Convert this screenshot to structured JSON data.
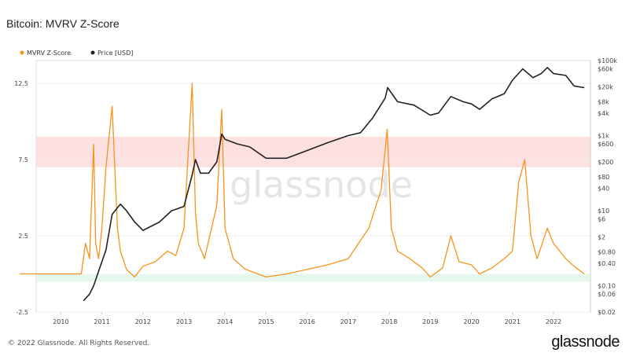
{
  "title": "Bitcoin: MVRV Z-Score",
  "footer": {
    "copyright": "© 2022 Glassnode. All Rights Reserved.",
    "logo": "glassnode"
  },
  "watermark": "glassnode",
  "colors": {
    "zscore": "#f7931a",
    "price": "#222222",
    "red_band": "#fde1e1",
    "green_band": "#e6f7ee",
    "grid": "#eeeeee"
  },
  "chart_data": {
    "type": "line",
    "title": "Bitcoin: MVRV Z-Score",
    "legend": [
      "MVRV Z-Score",
      "Price [USD]"
    ],
    "legend_position": "top-left",
    "x_ticks": [
      "2010",
      "2011",
      "2012",
      "2013",
      "2014",
      "2015",
      "2016",
      "2017",
      "2018",
      "2019",
      "2020",
      "2021",
      "2022"
    ],
    "y_left_ticks": [
      "12.5",
      "7.5",
      "2.5",
      "-2.5"
    ],
    "y_left_ticks_values": [
      12.5,
      7.5,
      2.5,
      -2.5
    ],
    "y_left_range": [
      -2.5,
      14.0
    ],
    "y_right_ticks": [
      "$100k",
      "$60k",
      "$20k",
      "$8k",
      "$4k",
      "$1k",
      "$600",
      "$200",
      "$80",
      "$40",
      "$10",
      "$6",
      "$2",
      "$0.80",
      "$0.40",
      "$0.10",
      "$0.06",
      "$0.02"
    ],
    "y_right_ticks_values": [
      100000,
      60000,
      20000,
      8000,
      4000,
      1000,
      600,
      200,
      80,
      40,
      10,
      6,
      2,
      0.8,
      0.4,
      0.1,
      0.06,
      0.02
    ],
    "y_right_scale": "log",
    "y_right_range": [
      0.02,
      100000
    ],
    "zones": [
      {
        "name": "red",
        "y_from": 7.0,
        "y_to": 9.0
      },
      {
        "name": "green",
        "y_from": -0.5,
        "y_to": 0.0
      }
    ],
    "series": [
      {
        "name": "MVRV Z-Score",
        "axis": "left",
        "x": [
          2009.0,
          2010.5,
          2010.6,
          2010.7,
          2010.8,
          2010.85,
          2010.92,
          2011.0,
          2011.1,
          2011.25,
          2011.38,
          2011.45,
          2011.6,
          2011.8,
          2012.0,
          2012.3,
          2012.6,
          2012.8,
          2013.0,
          2013.2,
          2013.28,
          2013.35,
          2013.5,
          2013.8,
          2013.92,
          2014.0,
          2014.2,
          2014.5,
          2014.8,
          2015.0,
          2015.5,
          2016.0,
          2016.5,
          2017.0,
          2017.5,
          2017.8,
          2017.95,
          2018.05,
          2018.2,
          2018.5,
          2018.8,
          2019.0,
          2019.3,
          2019.5,
          2019.7,
          2020.0,
          2020.2,
          2020.5,
          2020.8,
          2021.0,
          2021.15,
          2021.3,
          2021.45,
          2021.6,
          2021.85,
          2022.0,
          2022.3,
          2022.5,
          2022.75
        ],
        "values": [
          0.0,
          0.0,
          2.0,
          1.0,
          8.5,
          2.0,
          1.0,
          3.0,
          7.0,
          11.0,
          3.0,
          1.5,
          0.3,
          -0.2,
          0.5,
          0.8,
          1.5,
          1.2,
          3.0,
          12.5,
          4.0,
          2.0,
          1.0,
          4.5,
          10.8,
          3.0,
          1.0,
          0.3,
          0.0,
          -0.2,
          0.0,
          0.3,
          0.6,
          1.0,
          3.0,
          5.5,
          9.5,
          3.0,
          1.5,
          1.0,
          0.4,
          -0.2,
          0.4,
          2.5,
          0.8,
          0.6,
          0.0,
          0.4,
          1.0,
          1.5,
          6.0,
          7.5,
          2.5,
          1.0,
          3.0,
          2.0,
          1.0,
          0.5,
          0.0
        ]
      },
      {
        "name": "Price [USD]",
        "axis": "right",
        "x": [
          2010.55,
          2010.7,
          2010.8,
          2010.95,
          2011.1,
          2011.25,
          2011.45,
          2011.6,
          2011.8,
          2012.0,
          2012.4,
          2012.7,
          2013.0,
          2013.2,
          2013.28,
          2013.4,
          2013.6,
          2013.8,
          2013.92,
          2014.0,
          2014.3,
          2014.6,
          2015.0,
          2015.5,
          2016.0,
          2016.5,
          2017.0,
          2017.3,
          2017.6,
          2017.9,
          2017.96,
          2018.2,
          2018.6,
          2019.0,
          2019.2,
          2019.5,
          2019.8,
          2020.0,
          2020.2,
          2020.5,
          2020.8,
          2021.0,
          2021.25,
          2021.5,
          2021.7,
          2021.85,
          2022.0,
          2022.3,
          2022.5,
          2022.75
        ],
        "values": [
          0.04,
          0.06,
          0.1,
          0.3,
          0.9,
          8,
          15,
          10,
          5,
          3,
          5,
          10,
          13,
          90,
          230,
          100,
          100,
          200,
          1100,
          800,
          600,
          500,
          250,
          250,
          400,
          650,
          1000,
          1200,
          3000,
          10000,
          19000,
          8000,
          6500,
          3500,
          4000,
          11000,
          8000,
          7000,
          5000,
          9500,
          13000,
          30000,
          60000,
          35000,
          45000,
          65000,
          45000,
          40000,
          21000,
          19000
        ]
      }
    ]
  }
}
